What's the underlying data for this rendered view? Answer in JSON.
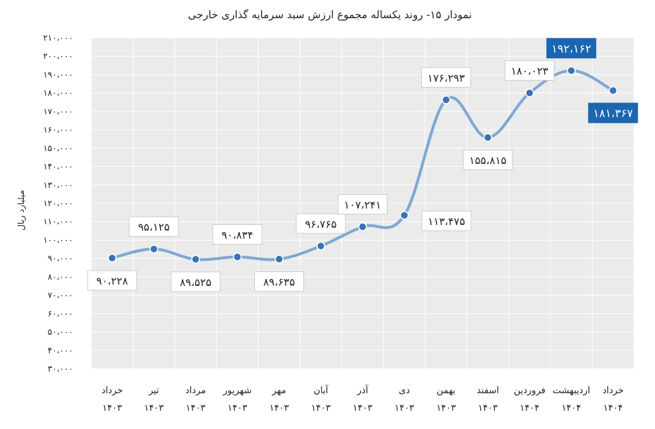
{
  "chart_data": {
    "type": "line",
    "title": "نمودار ۱۵- روند یکساله مجموع ارزش سبد سرمایه گذاری خارجی",
    "ylabel": "میلیارد ریال",
    "xlabel": "",
    "ylim": [
      30000,
      210000
    ],
    "ytick_values": [
      30000,
      40000,
      50000,
      60000,
      70000,
      80000,
      90000,
      100000,
      110000,
      120000,
      130000,
      140000,
      150000,
      160000,
      170000,
      180000,
      190000,
      200000,
      210000
    ],
    "ytick_labels": [
      "۳۰،۰۰۰",
      "۴۰،۰۰۰",
      "۵۰،۰۰۰",
      "۶۰،۰۰۰",
      "۷۰،۰۰۰",
      "۸۰،۰۰۰",
      "۹۰،۰۰۰",
      "۱۰۰،۰۰۰",
      "۱۱۰،۰۰۰",
      "۱۲۰،۰۰۰",
      "۱۳۰،۰۰۰",
      "۱۴۰،۰۰۰",
      "۱۵۰،۰۰۰",
      "۱۶۰،۰۰۰",
      "۱۷۰،۰۰۰",
      "۱۸۰،۰۰۰",
      "۱۹۰،۰۰۰",
      "۲۰۰،۰۰۰",
      "۲۱۰،۰۰۰"
    ],
    "grid": true,
    "categories": [
      {
        "month": "خرداد",
        "year": "۱۴۰۳"
      },
      {
        "month": "تیر",
        "year": "۱۴۰۳"
      },
      {
        "month": "مرداد",
        "year": "۱۴۰۳"
      },
      {
        "month": "شهریور",
        "year": "۱۴۰۳"
      },
      {
        "month": "مهر",
        "year": "۱۴۰۳"
      },
      {
        "month": "آبان",
        "year": "۱۴۰۳"
      },
      {
        "month": "آذر",
        "year": "۱۴۰۳"
      },
      {
        "month": "دی",
        "year": "۱۴۰۳"
      },
      {
        "month": "بهمن",
        "year": "۱۴۰۳"
      },
      {
        "month": "اسفند",
        "year": "۱۴۰۳"
      },
      {
        "month": "فروردین",
        "year": "۱۴۰۴"
      },
      {
        "month": "اردیبهشت",
        "year": "۱۴۰۴"
      },
      {
        "month": "خرداد",
        "year": "۱۴۰۴"
      }
    ],
    "values": [
      90228,
      95125,
      89525,
      90834,
      89635,
      96765,
      107241,
      113475,
      176293,
      155815,
      180023,
      192162,
      181367
    ],
    "value_labels": [
      "۹۰،۲۲۸",
      "۹۵،۱۲۵",
      "۸۹،۵۲۵",
      "۹۰،۸۳۴",
      "۸۹،۶۳۵",
      "۹۶،۷۶۵",
      "۱۰۷،۲۴۱",
      "۱۱۳،۴۷۵",
      "۱۷۶،۲۹۳",
      "۱۵۵،۸۱۵",
      "۱۸۰،۰۲۳",
      "۱۹۲،۱۶۲",
      "۱۸۱،۳۶۷"
    ],
    "label_positions": [
      "below",
      "above",
      "below",
      "above",
      "below",
      "above",
      "above",
      "right",
      "above",
      "below",
      "above",
      "above",
      "below"
    ],
    "highlighted_points": [
      11,
      12
    ],
    "colors": {
      "line": "#7fa7d3",
      "marker": "#3a72b5",
      "plot_bg": "#ebebeb",
      "grid": "#ffffff",
      "highlight_bg": "#1a66b0",
      "label_border": "#cccccc"
    }
  }
}
